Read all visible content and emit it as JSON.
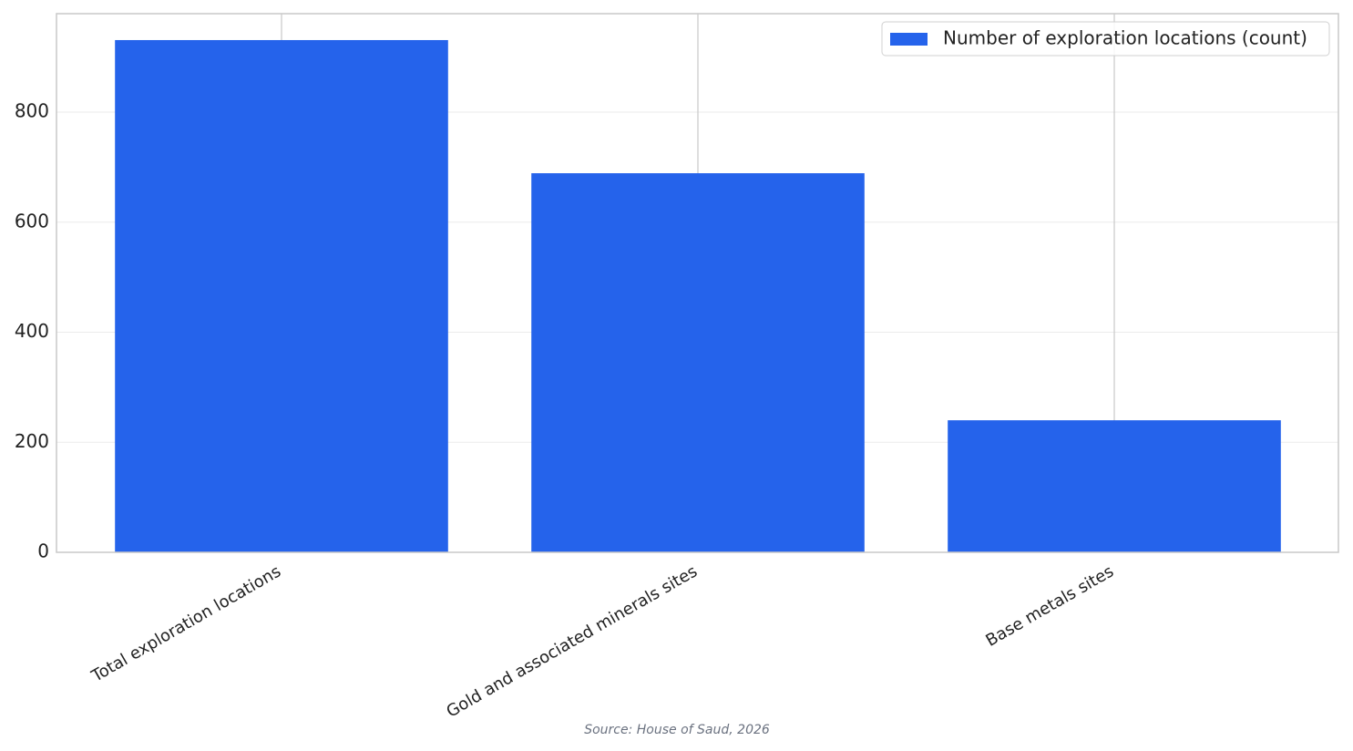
{
  "chart_data": {
    "type": "bar",
    "categories": [
      "Total exploration locations",
      "Gold and associated minerals sites",
      "Base metals sites"
    ],
    "series": [
      {
        "name": "Number of exploration locations (count)",
        "color": "#2563eb",
        "values": [
          931,
          689,
          240
        ]
      }
    ],
    "ylim": [
      0,
      979
    ],
    "yticks": [
      0,
      200,
      400,
      600,
      800
    ],
    "grid": true,
    "legend": "upper right",
    "source": "Source: House of Saud, 2026"
  }
}
